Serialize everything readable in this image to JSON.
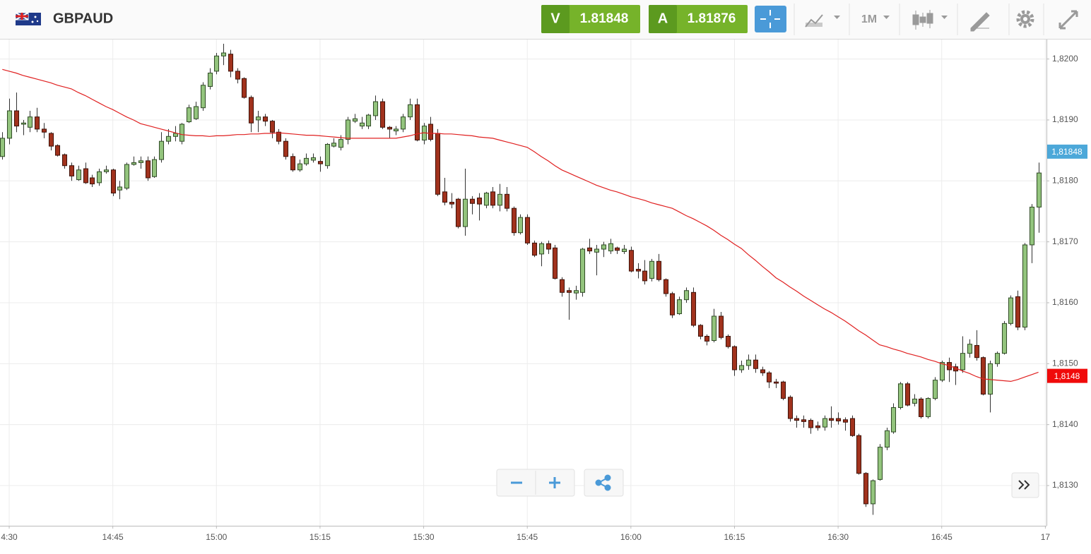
{
  "header": {
    "symbol": "GBPAUD",
    "sell_label": "V",
    "sell_price": "1.81848",
    "buy_label": "A",
    "buy_price": "1.81876",
    "interval": "1M"
  },
  "chart_data": {
    "type": "candlestick",
    "x": [
      "14:29",
      "14:30",
      "14:31",
      "14:32",
      "14:33",
      "14:34",
      "14:35",
      "14:36",
      "14:37",
      "14:38",
      "14:39",
      "14:40",
      "14:41",
      "14:42",
      "14:43",
      "14:44",
      "14:45",
      "14:46",
      "14:47",
      "14:48",
      "14:49",
      "14:50",
      "14:51",
      "14:52",
      "14:53",
      "14:54",
      "14:55",
      "14:56",
      "14:57",
      "14:58",
      "14:59",
      "15:00",
      "15:01",
      "15:02",
      "15:03",
      "15:04",
      "15:05",
      "15:06",
      "15:07",
      "15:08",
      "15:09",
      "15:10",
      "15:11",
      "15:12",
      "15:13",
      "15:14",
      "15:15",
      "15:16",
      "15:17",
      "15:18",
      "15:19",
      "15:20",
      "15:21",
      "15:22",
      "15:23",
      "15:24",
      "15:25",
      "15:26",
      "15:27",
      "15:28",
      "15:29",
      "15:30",
      "15:31",
      "15:32",
      "15:33",
      "15:34",
      "15:35",
      "15:36",
      "15:37",
      "15:38",
      "15:39",
      "15:40",
      "15:41",
      "15:42",
      "15:43",
      "15:44",
      "15:45",
      "15:46",
      "15:47",
      "15:48",
      "15:49",
      "15:50",
      "15:51",
      "15:52",
      "15:53",
      "15:54",
      "15:55",
      "15:56",
      "15:57",
      "15:58",
      "15:59",
      "16:00",
      "16:01",
      "16:02",
      "16:03",
      "16:04",
      "16:05",
      "16:06",
      "16:07",
      "16:08",
      "16:09",
      "16:10",
      "16:11",
      "16:12",
      "16:13",
      "16:14",
      "16:15",
      "16:16",
      "16:17",
      "16:18",
      "16:19",
      "16:20",
      "16:21",
      "16:22",
      "16:23",
      "16:24",
      "16:25",
      "16:26",
      "16:27",
      "16:28",
      "16:29",
      "16:30",
      "16:31",
      "16:32",
      "16:33",
      "16:34",
      "16:35",
      "16:36",
      "16:37",
      "16:38",
      "16:39",
      "16:40",
      "16:41",
      "16:42",
      "16:43",
      "16:44",
      "16:45",
      "16:46",
      "16:47",
      "16:48",
      "16:49",
      "16:50",
      "16:51",
      "16:52",
      "16:53",
      "16:54",
      "16:55",
      "16:56",
      "16:57",
      "16:58",
      "16:59"
    ],
    "open": [
      1.8184,
      1.8187,
      1.81915,
      1.81893,
      1.81888,
      1.81905,
      1.81885,
      1.81878,
      1.81858,
      1.81843,
      1.81825,
      1.81802,
      1.8182,
      1.81805,
      1.81797,
      1.81815,
      1.81818,
      1.81785,
      1.81788,
      1.81827,
      1.8183,
      1.81833,
      1.81807,
      1.81835,
      1.81865,
      1.81873,
      1.81865,
      1.81897,
      1.81902,
      1.8192,
      1.81955,
      1.8198,
      1.82005,
      1.82008,
      1.8198,
      1.81968,
      1.81937,
      1.819,
      1.81905,
      1.81898,
      1.8188,
      1.81865,
      1.8184,
      1.81818,
      1.81828,
      1.81834,
      1.81832,
      1.81825,
      1.81857,
      1.81855,
      1.81868,
      1.81898,
      1.8189,
      1.8189,
      1.81907,
      1.8193,
      1.81888,
      1.81882,
      1.81885,
      1.81905,
      1.81925,
      1.81867,
      1.81893,
      1.81878,
      1.81782,
      1.81765,
      1.8177,
      1.81725,
      1.8177,
      1.81772,
      1.8176,
      1.81782,
      1.8176,
      1.81778,
      1.81755,
      1.81715,
      1.8174,
      1.81698,
      1.8168,
      1.81697,
      1.8169,
      1.81638,
      1.8162,
      1.81616,
      1.81617,
      1.8169,
      1.81683,
      1.81688,
      1.81685,
      1.8169,
      1.81684,
      1.81686,
      1.81655,
      1.81652,
      1.8164,
      1.81668,
      1.81638,
      1.81615,
      1.81582,
      1.81605,
      1.81617,
      1.81563,
      1.81545,
      1.81538,
      1.81578,
      1.81545,
      1.81528,
      1.8149,
      1.81497,
      1.81506,
      1.8149,
      1.81485,
      1.8147,
      1.8147,
      1.81445,
      1.8141,
      1.81408,
      1.81407,
      1.81398,
      1.81396,
      1.8141,
      1.8141,
      1.81408,
      1.8141,
      1.81382,
      1.8132,
      1.8127,
      1.8131,
      1.81363,
      1.81388,
      1.81428,
      1.81467,
      1.81435,
      1.81442,
      1.81413,
      1.81443,
      1.81473,
      1.81502,
      1.81495,
      1.8149,
      1.81517,
      1.8153,
      1.8151,
      1.8145,
      1.815,
      1.81517,
      1.81566,
      1.8161,
      1.8156,
      1.81695,
      1.81757
    ],
    "high": [
      1.8188,
      1.81935,
      1.81945,
      1.819,
      1.81915,
      1.8192,
      1.81895,
      1.8188,
      1.8186,
      1.81845,
      1.8183,
      1.81825,
      1.8183,
      1.8181,
      1.8182,
      1.81825,
      1.8182,
      1.818,
      1.8183,
      1.8184,
      1.8184,
      1.8184,
      1.8184,
      1.8188,
      1.81885,
      1.8189,
      1.81895,
      1.81925,
      1.8193,
      1.81962,
      1.81985,
      1.8201,
      1.82025,
      1.82015,
      1.81985,
      1.8197,
      1.8194,
      1.81915,
      1.8191,
      1.819,
      1.81885,
      1.8187,
      1.81845,
      1.81835,
      1.81845,
      1.81845,
      1.8184,
      1.81862,
      1.8187,
      1.81875,
      1.81905,
      1.8191,
      1.81905,
      1.8191,
      1.8194,
      1.81935,
      1.8189,
      1.8189,
      1.8191,
      1.81935,
      1.81935,
      1.81895,
      1.81905,
      1.81885,
      1.81805,
      1.8178,
      1.81772,
      1.8182,
      1.81775,
      1.8178,
      1.81782,
      1.8179,
      1.81795,
      1.8179,
      1.81758,
      1.81745,
      1.81745,
      1.81702,
      1.817,
      1.81702,
      1.81695,
      1.81642,
      1.81625,
      1.81628,
      1.8169,
      1.81705,
      1.81695,
      1.817,
      1.81705,
      1.81692,
      1.81695,
      1.81692,
      1.81665,
      1.8167,
      1.81672,
      1.8168,
      1.8164,
      1.81618,
      1.8161,
      1.81625,
      1.81625,
      1.81565,
      1.81548,
      1.8159,
      1.81585,
      1.81548,
      1.8153,
      1.81505,
      1.81515,
      1.81515,
      1.81495,
      1.81488,
      1.81475,
      1.81472,
      1.81448,
      1.81415,
      1.81415,
      1.8141,
      1.81405,
      1.81415,
      1.8143,
      1.8142,
      1.81412,
      1.81415,
      1.81385,
      1.81322,
      1.8131,
      1.81368,
      1.81395,
      1.81435,
      1.8147,
      1.8147,
      1.8145,
      1.81445,
      1.81445,
      1.81478,
      1.81505,
      1.8151,
      1.815,
      1.81545,
      1.8154,
      1.81555,
      1.81512,
      1.81505,
      1.8152,
      1.8157,
      1.81612,
      1.8162,
      1.81698,
      1.81762,
      1.8183
    ],
    "low": [
      1.81835,
      1.8186,
      1.8188,
      1.81875,
      1.8188,
      1.8188,
      1.8187,
      1.8185,
      1.8184,
      1.8182,
      1.818,
      1.818,
      1.81795,
      1.8179,
      1.81792,
      1.81812,
      1.81775,
      1.8177,
      1.81785,
      1.81825,
      1.8182,
      1.818,
      1.81805,
      1.8183,
      1.8186,
      1.81865,
      1.8186,
      1.81895,
      1.819,
      1.81915,
      1.8195,
      1.81975,
      1.8199,
      1.8197,
      1.8196,
      1.81935,
      1.8188,
      1.8188,
      1.8189,
      1.8187,
      1.8186,
      1.81835,
      1.81815,
      1.81815,
      1.81825,
      1.8183,
      1.81815,
      1.8182,
      1.81855,
      1.8185,
      1.8186,
      1.81895,
      1.81885,
      1.81885,
      1.819,
      1.81885,
      1.8187,
      1.81875,
      1.8188,
      1.819,
      1.81865,
      1.8186,
      1.81865,
      1.81775,
      1.8176,
      1.81755,
      1.81722,
      1.8171,
      1.81745,
      1.81735,
      1.81755,
      1.81755,
      1.8175,
      1.8175,
      1.8171,
      1.81712,
      1.81695,
      1.81675,
      1.8166,
      1.8168,
      1.81638,
      1.8161,
      1.81572,
      1.81605,
      1.8161,
      1.8168,
      1.81645,
      1.81675,
      1.8168,
      1.8168,
      1.8168,
      1.8165,
      1.8164,
      1.8163,
      1.81635,
      1.81635,
      1.8161,
      1.81575,
      1.8158,
      1.816,
      1.8156,
      1.8154,
      1.8153,
      1.81535,
      1.8154,
      1.81525,
      1.8148,
      1.81485,
      1.8149,
      1.81485,
      1.8148,
      1.8146,
      1.8146,
      1.8144,
      1.81405,
      1.81395,
      1.81395,
      1.81385,
      1.8139,
      1.8139,
      1.81395,
      1.814,
      1.8139,
      1.8138,
      1.81318,
      1.81265,
      1.81252,
      1.81308,
      1.81358,
      1.81385,
      1.81425,
      1.8143,
      1.8143,
      1.8141,
      1.8141,
      1.8144,
      1.8147,
      1.8147,
      1.81465,
      1.81485,
      1.8151,
      1.81505,
      1.81448,
      1.8142,
      1.81495,
      1.81515,
      1.81563,
      1.81555,
      1.81555,
      1.81665,
      1.81715
    ],
    "close": [
      1.8187,
      1.81915,
      1.8189,
      1.81895,
      1.81905,
      1.81885,
      1.8188,
      1.81857,
      1.81842,
      1.81825,
      1.81808,
      1.81818,
      1.81797,
      1.81795,
      1.81815,
      1.81818,
      1.8178,
      1.8179,
      1.81827,
      1.8183,
      1.81833,
      1.81805,
      1.81835,
      1.81865,
      1.81873,
      1.81878,
      1.81893,
      1.8192,
      1.81922,
      1.81957,
      1.81977,
      1.82005,
      1.8201,
      1.8198,
      1.81967,
      1.81937,
      1.81895,
      1.81905,
      1.81898,
      1.8188,
      1.81865,
      1.8184,
      1.81818,
      1.81828,
      1.81837,
      1.81838,
      1.81828,
      1.8186,
      1.81862,
      1.81868,
      1.819,
      1.81902,
      1.81895,
      1.81908,
      1.8193,
      1.81888,
      1.81885,
      1.81885,
      1.81905,
      1.81925,
      1.81867,
      1.8189,
      1.81868,
      1.81778,
      1.81765,
      1.81762,
      1.81725,
      1.8177,
      1.81763,
      1.81762,
      1.8178,
      1.8176,
      1.81778,
      1.81755,
      1.81715,
      1.8174,
      1.81698,
      1.81678,
      1.81697,
      1.81688,
      1.8164,
      1.81617,
      1.81617,
      1.8162,
      1.81688,
      1.81685,
      1.81688,
      1.81695,
      1.81697,
      1.81686,
      1.81688,
      1.81652,
      1.81652,
      1.81636,
      1.81668,
      1.81638,
      1.81615,
      1.8158,
      1.81605,
      1.8162,
      1.81563,
      1.81545,
      1.81537,
      1.81578,
      1.81543,
      1.81528,
      1.8149,
      1.81497,
      1.81506,
      1.81492,
      1.81485,
      1.8147,
      1.81468,
      1.81443,
      1.8141,
      1.81407,
      1.81405,
      1.81395,
      1.81395,
      1.8141,
      1.81407,
      1.81406,
      1.81404,
      1.81382,
      1.8132,
      1.8127,
      1.81308,
      1.81363,
      1.8139,
      1.81428,
      1.81467,
      1.81432,
      1.81442,
      1.81413,
      1.81443,
      1.81473,
      1.81502,
      1.8149,
      1.81488,
      1.81517,
      1.81532,
      1.8151,
      1.8145,
      1.815,
      1.81517,
      1.81566,
      1.81608,
      1.8156,
      1.81695,
      1.81757,
      1.81813
    ],
    "up_color": "#93c47d",
    "down_color": "#a1321d",
    "moving_average": {
      "color": "#e02020",
      "values": [
        1.81983,
        1.8198,
        1.81977,
        1.81973,
        1.8197,
        1.81967,
        1.81964,
        1.81961,
        1.81957,
        1.81954,
        1.81951,
        1.81945,
        1.8194,
        1.81934,
        1.81928,
        1.81922,
        1.81917,
        1.81911,
        1.81905,
        1.819,
        1.81894,
        1.81891,
        1.81888,
        1.81885,
        1.81882,
        1.81879,
        1.81876,
        1.81875,
        1.81874,
        1.81874,
        1.81873,
        1.81874,
        1.81874,
        1.81875,
        1.81876,
        1.81876,
        1.81877,
        1.81877,
        1.81878,
        1.81878,
        1.81879,
        1.81878,
        1.81877,
        1.81876,
        1.81875,
        1.81875,
        1.81874,
        1.81873,
        1.81872,
        1.81871,
        1.8187,
        1.8187,
        1.8187,
        1.8187,
        1.8187,
        1.8187,
        1.8187,
        1.8187,
        1.81872,
        1.81874,
        1.81877,
        1.81879,
        1.81878,
        1.81878,
        1.81877,
        1.81877,
        1.81876,
        1.81875,
        1.81874,
        1.81872,
        1.81871,
        1.8187,
        1.81867,
        1.81864,
        1.81861,
        1.81858,
        1.81855,
        1.81848,
        1.8184,
        1.81833,
        1.81825,
        1.81818,
        1.81813,
        1.81808,
        1.81803,
        1.81798,
        1.81793,
        1.81789,
        1.81785,
        1.81782,
        1.81778,
        1.81774,
        1.81771,
        1.81768,
        1.81764,
        1.81761,
        1.81758,
        1.81755,
        1.81749,
        1.81743,
        1.81738,
        1.81732,
        1.81726,
        1.81719,
        1.81711,
        1.81704,
        1.81696,
        1.81689,
        1.81679,
        1.8167,
        1.8166,
        1.81651,
        1.81641,
        1.81634,
        1.81626,
        1.81619,
        1.81611,
        1.81604,
        1.81597,
        1.8159,
        1.81584,
        1.81577,
        1.8157,
        1.81562,
        1.81554,
        1.81547,
        1.81539,
        1.81531,
        1.81528,
        1.81524,
        1.81521,
        1.81517,
        1.81514,
        1.81511,
        1.81507,
        1.81504,
        1.815,
        1.81497,
        1.81493,
        1.81488,
        1.81484,
        1.81479,
        1.81475,
        1.81474,
        1.81473,
        1.81472,
        1.81471,
        1.81474,
        1.81478,
        1.81482,
        1.81486
      ]
    },
    "price_tags": [
      {
        "value": 1.81848,
        "label": "1,81848",
        "color": "#4ca8d9"
      },
      {
        "value": 1.8148,
        "label": "1,8148",
        "color": "#f00a0a"
      }
    ],
    "ylim": [
      1.81234,
      1.82032
    ],
    "yticks": [
      {
        "value": 1.813,
        "label": "1,8130"
      },
      {
        "value": 1.814,
        "label": "1,8140"
      },
      {
        "value": 1.815,
        "label": "1,8150"
      },
      {
        "value": 1.816,
        "label": "1,8160"
      },
      {
        "value": 1.817,
        "label": "1,8170"
      },
      {
        "value": 1.818,
        "label": "1,8180"
      },
      {
        "value": 1.819,
        "label": "1,8190"
      },
      {
        "value": 1.82,
        "label": "1,8200"
      }
    ],
    "xlim": [
      "14:28:40",
      "17:00:10"
    ],
    "xticks": [
      {
        "value": "14:30",
        "label": "4:30"
      },
      "14:45",
      "15:00",
      "15:15",
      "15:30",
      "15:45",
      "16:00",
      "16:15",
      "16:30",
      "16:45",
      {
        "value": "17:00",
        "label": "17"
      }
    ],
    "grid": true
  }
}
